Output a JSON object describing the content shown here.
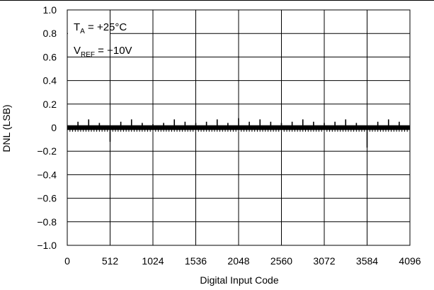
{
  "chart_data": {
    "type": "line",
    "title": "",
    "xlabel": "Digital Input Code",
    "ylabel": "DNL (LSB)",
    "xlim": [
      0,
      4096
    ],
    "ylim": [
      -1.0,
      1.0
    ],
    "grid": true,
    "x_ticks": [
      "0",
      "512",
      "1024",
      "1536",
      "2048",
      "2560",
      "3072",
      "3584",
      "4096"
    ],
    "y_ticks": [
      "1.0",
      "0.8",
      "0.6",
      "0.4",
      "0.2",
      "0",
      "−0.2",
      "−0.4",
      "−0.6",
      "−0.8",
      "−1.0"
    ],
    "annotations": [
      {
        "main": "T",
        "sub": "A",
        "rest": " = +25°C"
      },
      {
        "main": "V",
        "sub": "REF",
        "rest": " = +10V"
      }
    ],
    "baseline": 0.0,
    "noise_band": [
      -0.02,
      0.02
    ],
    "spikes": [
      {
        "x": 128,
        "y": 0.05
      },
      {
        "x": 256,
        "y": 0.07
      },
      {
        "x": 384,
        "y": 0.04
      },
      {
        "x": 512,
        "y": -0.12
      },
      {
        "x": 640,
        "y": 0.05
      },
      {
        "x": 768,
        "y": 0.07
      },
      {
        "x": 896,
        "y": 0.04
      },
      {
        "x": 1024,
        "y": 0.03
      },
      {
        "x": 1152,
        "y": 0.04
      },
      {
        "x": 1280,
        "y": 0.07
      },
      {
        "x": 1408,
        "y": 0.05
      },
      {
        "x": 1536,
        "y": 0.04
      },
      {
        "x": 1664,
        "y": 0.05
      },
      {
        "x": 1792,
        "y": 0.07
      },
      {
        "x": 1920,
        "y": 0.04
      },
      {
        "x": 2048,
        "y": 0.08
      },
      {
        "x": 2176,
        "y": 0.05
      },
      {
        "x": 2304,
        "y": 0.07
      },
      {
        "x": 2432,
        "y": 0.05
      },
      {
        "x": 2560,
        "y": 0.04
      },
      {
        "x": 2688,
        "y": 0.05
      },
      {
        "x": 2816,
        "y": 0.07
      },
      {
        "x": 2944,
        "y": 0.05
      },
      {
        "x": 3072,
        "y": 0.04
      },
      {
        "x": 3200,
        "y": 0.05
      },
      {
        "x": 3328,
        "y": 0.07
      },
      {
        "x": 3456,
        "y": 0.04
      },
      {
        "x": 3584,
        "y": -0.17
      },
      {
        "x": 3712,
        "y": 0.05
      },
      {
        "x": 3840,
        "y": 0.07
      },
      {
        "x": 3968,
        "y": 0.05
      }
    ]
  }
}
